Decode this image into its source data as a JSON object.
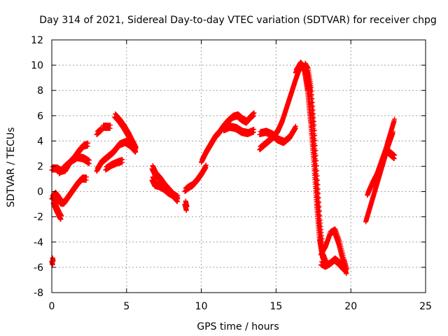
{
  "chart_data": {
    "type": "scatter",
    "title": "Day 314 of 2021, Sidereal Day-to-day VTEC variation (SDTVAR) for receiver chpg",
    "xlabel": "GPS time / hours",
    "ylabel": "SDTVAR / TECUs",
    "xlim": [
      0,
      25
    ],
    "ylim": [
      -8,
      12
    ],
    "xticks": [
      0,
      5,
      10,
      15,
      20,
      25
    ],
    "yticks": [
      -8,
      -6,
      -4,
      -2,
      0,
      2,
      4,
      6,
      8,
      10,
      12
    ],
    "grid": true,
    "marker": "+",
    "color": "#ff0000",
    "series": [
      {
        "name": "arc-1-upper",
        "x": [
          0.0,
          0.3,
          0.6,
          0.9,
          1.2,
          1.5,
          1.8,
          2.1,
          2.4
        ],
        "y": [
          1.7,
          1.7,
          1.5,
          1.6,
          2.2,
          2.6,
          3.1,
          3.5,
          3.6
        ]
      },
      {
        "name": "arc-1-band",
        "x": [
          0.5,
          0.9,
          1.3,
          1.7,
          2.1,
          2.5
        ],
        "y": [
          1.4,
          1.9,
          2.3,
          2.6,
          2.5,
          2.2
        ]
      },
      {
        "name": "arc-2-lower",
        "x": [
          0.0,
          0.2,
          0.4,
          0.6,
          0.8,
          1.1,
          1.4,
          1.7,
          2.0,
          2.3
        ],
        "y": [
          -0.6,
          -0.3,
          -0.6,
          -1.0,
          -1.0,
          -0.5,
          0.0,
          0.5,
          0.9,
          0.9
        ]
      },
      {
        "name": "arc-2-drop",
        "x": [
          0.1,
          0.3,
          0.5,
          0.6
        ],
        "y": [
          -0.9,
          -1.5,
          -2.0,
          -2.2
        ]
      },
      {
        "name": "outlier",
        "x": [
          0.0,
          0.05
        ],
        "y": [
          -5.5,
          -5.8
        ]
      },
      {
        "name": "arc-3",
        "x": [
          3.0,
          3.3,
          3.7,
          4.1,
          4.5,
          4.9,
          5.3,
          5.6
        ],
        "y": [
          1.6,
          2.2,
          2.6,
          3.0,
          3.6,
          3.8,
          3.5,
          3.1
        ]
      },
      {
        "name": "arc-3-top",
        "x": [
          3.0,
          3.3
        ],
        "y": [
          4.5,
          4.8
        ]
      },
      {
        "name": "arc-3-mid",
        "x": [
          3.4,
          3.6,
          3.9
        ],
        "y": [
          5.0,
          5.0,
          5.0
        ]
      },
      {
        "name": "arc-3-low",
        "x": [
          3.6,
          4.0,
          4.4,
          4.7
        ],
        "y": [
          1.7,
          2.0,
          2.2,
          2.3
        ]
      },
      {
        "name": "arc-3-descend",
        "x": [
          4.2,
          4.5,
          4.8,
          5.1,
          5.4,
          5.6
        ],
        "y": [
          5.9,
          5.5,
          5.0,
          4.4,
          3.7,
          3.2
        ]
      },
      {
        "name": "arc-4",
        "x": [
          6.7,
          6.9,
          7.2,
          7.5,
          7.8,
          8.1,
          8.4
        ],
        "y": [
          1.8,
          1.3,
          0.9,
          0.4,
          0.0,
          -0.4,
          -0.8
        ]
      },
      {
        "name": "arc-4-lower",
        "x": [
          6.7,
          6.9,
          7.2,
          7.5,
          7.8,
          8.1,
          8.4
        ],
        "y": [
          0.9,
          0.4,
          0.3,
          0.1,
          -0.2,
          -0.4,
          -0.6
        ]
      },
      {
        "name": "arc-5",
        "x": [
          8.9,
          9.1,
          9.4,
          9.7,
          10.0,
          10.3
        ],
        "y": [
          0.0,
          0.2,
          0.4,
          0.8,
          1.3,
          1.9
        ]
      },
      {
        "name": "arc-5-outlier",
        "x": [
          8.9,
          9.0
        ],
        "y": [
          -1.0,
          -1.5
        ]
      },
      {
        "name": "arc-5-rise",
        "x": [
          10.0,
          10.3,
          10.6,
          10.9,
          11.2,
          11.5,
          11.8,
          12.1,
          12.4,
          12.7,
          13.0,
          13.3,
          13.5
        ],
        "y": [
          2.3,
          3.0,
          3.6,
          4.2,
          4.6,
          5.1,
          5.5,
          5.8,
          5.9,
          5.6,
          5.4,
          5.8,
          6.0
        ]
      },
      {
        "name": "arc-5-band",
        "x": [
          11.5,
          11.9,
          12.3,
          12.7,
          13.1,
          13.5
        ],
        "y": [
          4.8,
          5.0,
          4.9,
          4.6,
          4.5,
          4.7
        ]
      },
      {
        "name": "arc-6",
        "x": [
          13.9,
          14.2,
          14.5,
          14.8,
          15.1,
          15.4,
          15.7,
          16.0,
          16.3,
          16.6
        ],
        "y": [
          3.3,
          3.6,
          3.9,
          4.2,
          4.7,
          5.5,
          6.6,
          7.7,
          8.8,
          9.8
        ]
      },
      {
        "name": "arc-6-band",
        "x": [
          13.9,
          14.3,
          14.7,
          15.1,
          15.5,
          15.9,
          16.3
        ],
        "y": [
          4.5,
          4.6,
          4.4,
          4.0,
          3.8,
          4.2,
          5.0
        ]
      },
      {
        "name": "arc-6-peak",
        "x": [
          16.3,
          16.6,
          16.9,
          17.1,
          17.3,
          17.5,
          17.7,
          17.9,
          18.1,
          18.3
        ],
        "y": [
          9.4,
          10.0,
          9.5,
          8.0,
          5.5,
          2.5,
          -1.0,
          -3.8,
          -5.2,
          -5.8
        ]
      },
      {
        "name": "arc-6-peak-b",
        "x": [
          16.9,
          17.1,
          17.3,
          17.5,
          17.7,
          17.9,
          18.1
        ],
        "y": [
          9.9,
          9.5,
          8.0,
          5.0,
          1.0,
          -2.5,
          -5.0
        ]
      },
      {
        "name": "arc-6-tail",
        "x": [
          18.0,
          18.3,
          18.6,
          18.9,
          19.2,
          19.5,
          19.7
        ],
        "y": [
          -5.0,
          -4.4,
          -3.4,
          -3.2,
          -4.2,
          -5.6,
          -6.5
        ]
      },
      {
        "name": "arc-6-tail-b",
        "x": [
          18.0,
          18.3,
          18.6,
          18.9,
          19.2,
          19.5
        ],
        "y": [
          -5.8,
          -6.0,
          -5.8,
          -5.5,
          -5.8,
          -6.2
        ]
      },
      {
        "name": "arc-7",
        "x": [
          21.0,
          21.3,
          21.6,
          21.9,
          22.2,
          22.5,
          22.8
        ],
        "y": [
          -2.4,
          -1.2,
          0.0,
          1.2,
          2.4,
          3.6,
          4.6
        ]
      },
      {
        "name": "arc-7-upper",
        "x": [
          21.1,
          21.4,
          21.7,
          22.0,
          22.3,
          22.6,
          22.9
        ],
        "y": [
          -0.3,
          0.5,
          1.2,
          2.2,
          3.2,
          4.4,
          5.6
        ]
      },
      {
        "name": "arc-7-tail",
        "x": [
          22.5,
          22.7,
          22.9
        ],
        "y": [
          3.0,
          2.8,
          2.6
        ]
      }
    ]
  }
}
